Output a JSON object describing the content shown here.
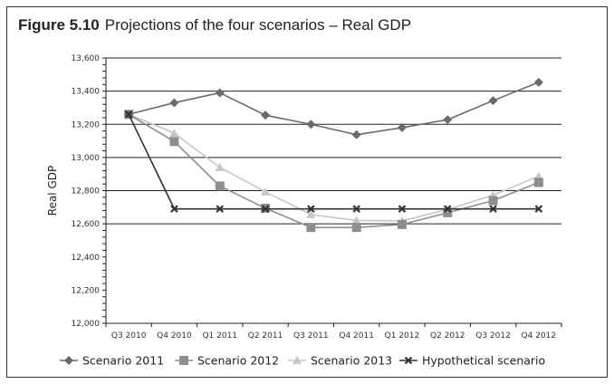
{
  "chart_data": {
    "type": "line",
    "figure_label": "Figure 5.10",
    "title": "Projections of the four scenarios – Real GDP",
    "ylabel": "Real GDP",
    "xlabel": "",
    "ylim": [
      12000,
      13600
    ],
    "yticks": [
      "12,000",
      "12,200",
      "12,400",
      "12,600",
      "12,800",
      "13,000",
      "13,200",
      "13,400",
      "13,600"
    ],
    "gridlines": [
      12000,
      12600,
      12800,
      13000,
      13200,
      13400,
      13600
    ],
    "grid": true,
    "legend_position": "bottom",
    "categories": [
      "Q3 2010",
      "Q4 2010",
      "Q1 2011",
      "Q2 2011",
      "Q3 2011",
      "Q4 2011",
      "Q1 2012",
      "Q2 2012",
      "Q3 2012",
      "Q4 2012"
    ],
    "series": [
      {
        "name": "Scenario 2011",
        "marker": "diamond",
        "color": "#6a6a6a",
        "values": [
          13260,
          13330,
          13390,
          13255,
          13200,
          13137,
          13180,
          13228,
          13343,
          13453
        ]
      },
      {
        "name": "Scenario 2012",
        "marker": "square",
        "color": "#8e8e8e",
        "values": [
          13260,
          13096,
          12828,
          12694,
          12578,
          12578,
          12596,
          12667,
          12740,
          12849
        ]
      },
      {
        "name": "Scenario 2013",
        "marker": "triangle",
        "color": "#c6c6c6",
        "values": [
          13260,
          13147,
          12940,
          12793,
          12656,
          12620,
          12618,
          12686,
          12773,
          12887
        ]
      },
      {
        "name": "Hypothetical scenario",
        "marker": "x",
        "color": "#333333",
        "values": [
          13260,
          12690,
          12690,
          12690,
          12690,
          12690,
          12690,
          12690,
          12690,
          12690
        ]
      }
    ]
  }
}
